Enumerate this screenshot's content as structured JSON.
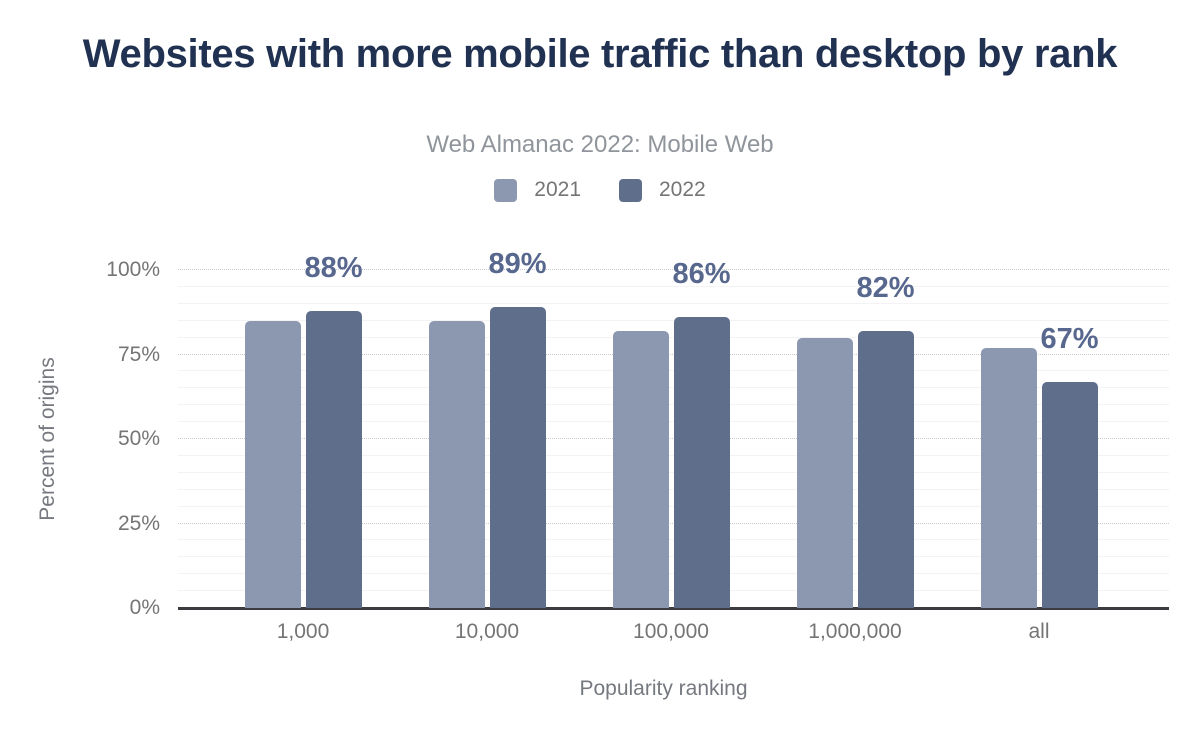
{
  "header": {
    "title": "Websites with more mobile traffic than desktop by rank",
    "subtitle": "Web Almanac 2022: Mobile Web"
  },
  "chart_data": {
    "type": "bar",
    "title": "Websites with more mobile traffic than desktop by rank",
    "subtitle": "Web Almanac 2022: Mobile Web",
    "categories": [
      "1,000",
      "10,000",
      "100,000",
      "1,000,000",
      "all"
    ],
    "series": [
      {
        "name": "2021",
        "color": "#8c98b0",
        "values": [
          85,
          85,
          82,
          80,
          77
        ]
      },
      {
        "name": "2022",
        "color": "#5e6e8b",
        "values": [
          88,
          89,
          86,
          82,
          67
        ]
      }
    ],
    "data_labels": [
      "88%",
      "89%",
      "86%",
      "82%",
      "67%"
    ],
    "data_label_series": "2022",
    "xlabel": "Popularity ranking",
    "ylabel": "Percent of origins",
    "y_ticks": [
      "0%",
      "25%",
      "50%",
      "75%",
      "100%"
    ],
    "ylim": [
      0,
      100
    ],
    "grid": {
      "major_step": 25,
      "minor_step": 5,
      "major_style": "dotted",
      "minor_style": "solid"
    },
    "legend_position": "top"
  },
  "colors": {
    "title": "#203152",
    "subtitle": "#8f959b",
    "tick_label": "#757575",
    "axis_title": "#75797f",
    "data_label": "#57678d",
    "axis_line": "#3b3b3f",
    "grid_major": "#c7c9cd",
    "grid_minor": "#f3f3f5",
    "series_2021": "#8c98b0",
    "series_2022": "#5e6e8b"
  }
}
